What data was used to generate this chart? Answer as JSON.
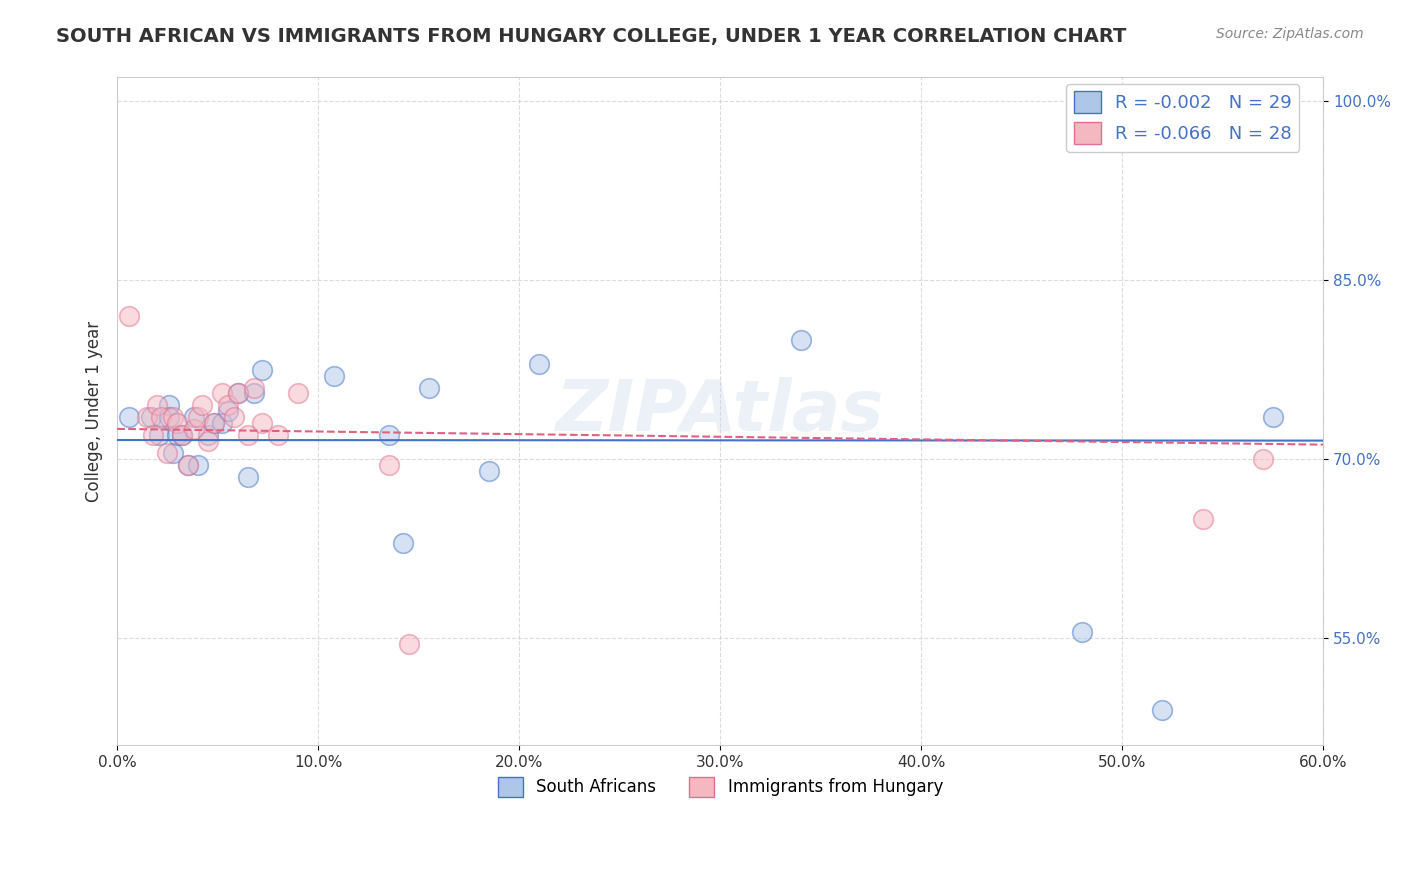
{
  "title": "SOUTH AFRICAN VS IMMIGRANTS FROM HUNGARY COLLEGE, UNDER 1 YEAR CORRELATION CHART",
  "source": "Source: ZipAtlas.com",
  "ylabel": "College, Under 1 year",
  "xlim": [
    0.0,
    0.6
  ],
  "ylim": [
    0.46,
    1.02
  ],
  "xticks": [
    0.0,
    0.1,
    0.2,
    0.3,
    0.4,
    0.5,
    0.6
  ],
  "xticklabels": [
    "0.0%",
    "10.0%",
    "20.0%",
    "30.0%",
    "40.0%",
    "50.0%",
    "60.0%"
  ],
  "yticks_right": [
    0.55,
    0.7,
    0.85,
    1.0
  ],
  "ytick_labels_right": [
    "55.0%",
    "70.0%",
    "85.0%",
    "100.0%"
  ],
  "grid_color": "#cccccc",
  "background_color": "#ffffff",
  "blue_color": "#aec6e8",
  "pink_color": "#f4b8c1",
  "blue_line_color": "#4472c4",
  "pink_line_color": "#e06080",
  "watermark": "ZIPAtlas",
  "legend_R_blue": "R = -0.002",
  "legend_N_blue": "N = 29",
  "legend_R_pink": "R = -0.066",
  "legend_N_pink": "N = 28",
  "blue_x": [
    0.006,
    0.017,
    0.021,
    0.026,
    0.026,
    0.028,
    0.03,
    0.032,
    0.035,
    0.038,
    0.04,
    0.045,
    0.048,
    0.052,
    0.055,
    0.06,
    0.065,
    0.068,
    0.072,
    0.108,
    0.135,
    0.142,
    0.155,
    0.185,
    0.21,
    0.34,
    0.48,
    0.52,
    0.575
  ],
  "blue_y": [
    0.735,
    0.735,
    0.72,
    0.745,
    0.735,
    0.705,
    0.72,
    0.72,
    0.695,
    0.735,
    0.695,
    0.72,
    0.73,
    0.73,
    0.74,
    0.755,
    0.685,
    0.755,
    0.775,
    0.77,
    0.72,
    0.63,
    0.76,
    0.69,
    0.78,
    0.8,
    0.555,
    0.49,
    0.735
  ],
  "pink_x": [
    0.006,
    0.015,
    0.018,
    0.02,
    0.022,
    0.025,
    0.028,
    0.03,
    0.032,
    0.035,
    0.038,
    0.04,
    0.042,
    0.045,
    0.048,
    0.052,
    0.055,
    0.058,
    0.06,
    0.065,
    0.068,
    0.072,
    0.08,
    0.09,
    0.135,
    0.145,
    0.54,
    0.57
  ],
  "pink_y": [
    0.82,
    0.735,
    0.72,
    0.745,
    0.735,
    0.705,
    0.735,
    0.73,
    0.72,
    0.695,
    0.725,
    0.735,
    0.745,
    0.715,
    0.73,
    0.755,
    0.745,
    0.735,
    0.755,
    0.72,
    0.76,
    0.73,
    0.72,
    0.755,
    0.695,
    0.545,
    0.65,
    0.7
  ],
  "dot_size": 200,
  "dot_alpha": 0.5,
  "dot_linewidth": 1.2,
  "R_blue": -0.002,
  "R_pink": -0.066
}
